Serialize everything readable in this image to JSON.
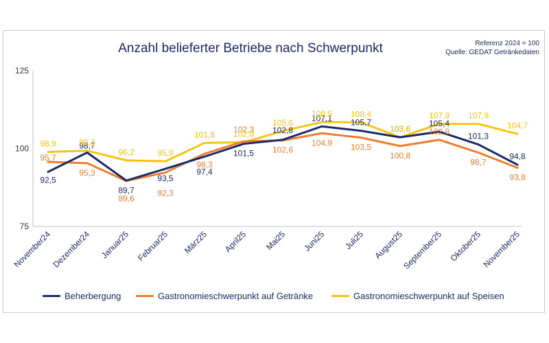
{
  "title": "Anzahl belieferter Betriebe nach Schwerpunkt",
  "notes": {
    "reference": "Referenz 2024 = 100",
    "source": "Quelle: GEDAT Getränkedaten"
  },
  "colors": {
    "navy": "#1a2a66",
    "orange": "#ee7d30",
    "yellow": "#f7c413",
    "axis": "#bfbfbf"
  },
  "chart_data": {
    "type": "line",
    "title": "Anzahl belieferter Betriebe nach Schwerpunkt",
    "categories": [
      "November24",
      "Dezember24",
      "Januar25",
      "Februar25",
      "März25",
      "April25",
      "Mai25",
      "Juni25",
      "Juli25",
      "August25",
      "September25",
      "Oktober25",
      "November25"
    ],
    "ylim": [
      75,
      125
    ],
    "yticks": [
      75,
      100,
      125
    ],
    "grid": false,
    "legend_position": "bottom",
    "series": [
      {
        "name": "Beherbergung",
        "color": "#1a2a66",
        "values": [
          92.5,
          98.7,
          89.7,
          93.5,
          97.4,
          101.5,
          102.8,
          107.1,
          105.7,
          103.6,
          105.4,
          101.3,
          94.8
        ],
        "labels": [
          "92,5",
          "98,7",
          "89,7",
          "93,5",
          "97,4",
          "101,5",
          "102,8",
          "107,1",
          "105,7",
          "103,6",
          "105,4",
          "101,3",
          "94,8"
        ]
      },
      {
        "name": "Gastronomieschwerpunkt auf Getränke",
        "color": "#ee7d30",
        "values": [
          95.7,
          95.3,
          89.6,
          92.3,
          98.3,
          102.3,
          102.6,
          104.9,
          103.5,
          100.8,
          102.8,
          98.7,
          93.8
        ],
        "labels": [
          "95,7",
          "95,3",
          "89,6",
          "92,3",
          "98,3",
          "102,3",
          "102,6",
          "104,9",
          "103,5",
          "100,8",
          "102,8",
          "98,7",
          "93,8"
        ]
      },
      {
        "name": "Gastronomieschwerpunkt auf Speisen",
        "color": "#f7c413",
        "values": [
          98.9,
          99.3,
          96.2,
          95.9,
          101.8,
          102.0,
          105.6,
          108.5,
          108.4,
          103.6,
          107.9,
          107.9,
          104.7
        ],
        "labels": [
          "98,9",
          "99,3",
          "96,2",
          "95,9",
          "101,8",
          "102,0",
          "105,6",
          "108,5",
          "108,4",
          "103,6",
          "107,9",
          "107,9",
          "104,7"
        ]
      }
    ]
  }
}
